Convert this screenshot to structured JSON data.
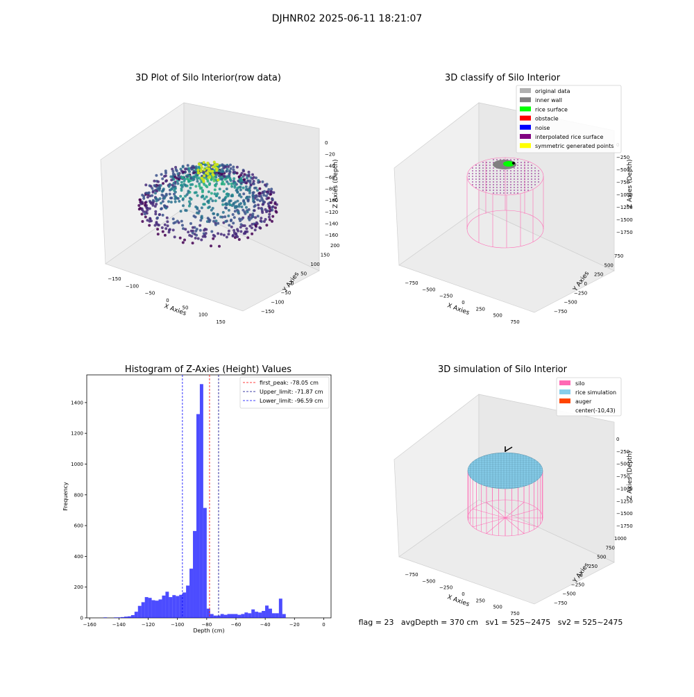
{
  "page_title": "DJHNR02 2025-06-11 18:21:07",
  "footer_text": "flag = 23   avgDepth = 370 cm   sv1 = 525~2475   sv2 = 525~2475",
  "colors": {
    "silo": "#ff69b4",
    "rice": "#87ceeb",
    "auger": "#ff4500",
    "histogram": "#0000ff",
    "first_peak": "#ff0000",
    "limits": "#00008b",
    "original": "#b0b0b0",
    "inner_wall": "#808080",
    "rice_surface": "#00ff00",
    "obstacle": "#ff0000",
    "noise": "#0000ff",
    "interpolated": "#800080",
    "symmetric": "#ffff00"
  },
  "chart_data": [
    {
      "type": "scatter3d",
      "title": "3D Plot of Silo Interior(row data)",
      "xlabel": "X Axies",
      "ylabel": "Y Axies",
      "zlabel": "Z Axies (Depth)",
      "x_ticks": [
        "−150",
        "−100",
        "−50",
        "0",
        "50",
        "100",
        "150"
      ],
      "y_ticks": [
        "−150",
        "−100",
        "−50",
        "0",
        "50",
        "100",
        "150",
        "200"
      ],
      "z_ticks": [
        "0",
        "−20",
        "−40",
        "−60",
        "−80",
        "−100",
        "−120",
        "−140",
        "−160"
      ],
      "xlim": [
        -175,
        175
      ],
      "ylim": [
        -175,
        200
      ],
      "zlim": [
        -165,
        5
      ],
      "colormap": "viridis"
    },
    {
      "type": "scatter3d",
      "title": "3D classify of Silo Interior",
      "xlabel": "X Axies",
      "ylabel": "Y Axies",
      "zlabel": "Z Axies (Depth)",
      "x_ticks": [
        "−750",
        "−500",
        "−250",
        "0",
        "250",
        "500",
        "750"
      ],
      "y_ticks": [
        "−750",
        "−500",
        "−250",
        "0",
        "250",
        "500",
        "750"
      ],
      "z_ticks": [
        "0",
        "−250",
        "−500",
        "−750",
        "−1000",
        "−1250",
        "−1500",
        "−1750"
      ],
      "legend": [
        "original data",
        "inner wall",
        "rice surface",
        "obstacle",
        "noise",
        "interpolated rice surface",
        "symmetric generated points"
      ],
      "legend_position": "top-right"
    },
    {
      "type": "bar",
      "title": "Histogram of Z-Axies (Height) Values",
      "xlabel": "Depth (cm)",
      "ylabel": "Frequency",
      "xlim": [
        -162,
        5
      ],
      "ylim": [
        0,
        1580
      ],
      "x_ticks": [
        -160,
        -140,
        -120,
        -100,
        -80,
        -60,
        -40,
        -20,
        0
      ],
      "y_ticks": [
        0,
        200,
        400,
        600,
        800,
        1000,
        1200,
        1400
      ],
      "bin_width": 2.35,
      "bin_start": -150.5,
      "values": [
        3,
        0,
        0,
        3,
        3,
        5,
        8,
        10,
        18,
        40,
        78,
        102,
        135,
        130,
        115,
        112,
        120,
        145,
        170,
        135,
        148,
        142,
        150,
        165,
        210,
        320,
        565,
        1325,
        1520,
        715,
        60,
        25,
        15,
        15,
        25,
        20,
        25,
        25,
        25,
        20,
        25,
        35,
        30,
        55,
        40,
        35,
        45,
        80,
        60,
        30,
        30,
        125,
        25
      ],
      "lines": [
        {
          "label": "first_peak: -78.05 cm",
          "value": -78.05,
          "color": "red"
        },
        {
          "label": "Upper_limit: -71.87 cm",
          "value": -71.87,
          "color": "darkblue"
        },
        {
          "label": "Lower_limit: -96.59 cm",
          "value": -96.59,
          "color": "blue"
        }
      ],
      "legend_position": "top-right"
    },
    {
      "type": "surface3d",
      "title": "3D simulation of Silo Interior",
      "xlabel": "X Axies",
      "ylabel": "Y Axies",
      "zlabel": "Z Axies (Depth)",
      "x_ticks": [
        "−750",
        "−500",
        "−250",
        "0",
        "250",
        "500",
        "750"
      ],
      "y_ticks": [
        "−750",
        "−500",
        "−250",
        "0",
        "250",
        "500",
        "750",
        "1000"
      ],
      "z_ticks": [
        "0",
        "−250",
        "−500",
        "−750",
        "−1000",
        "−1250",
        "−1500",
        "−1750"
      ],
      "legend": [
        "silo",
        "rice simulation",
        "auger",
        "center(-10,43)"
      ],
      "legend_position": "top-right"
    }
  ]
}
